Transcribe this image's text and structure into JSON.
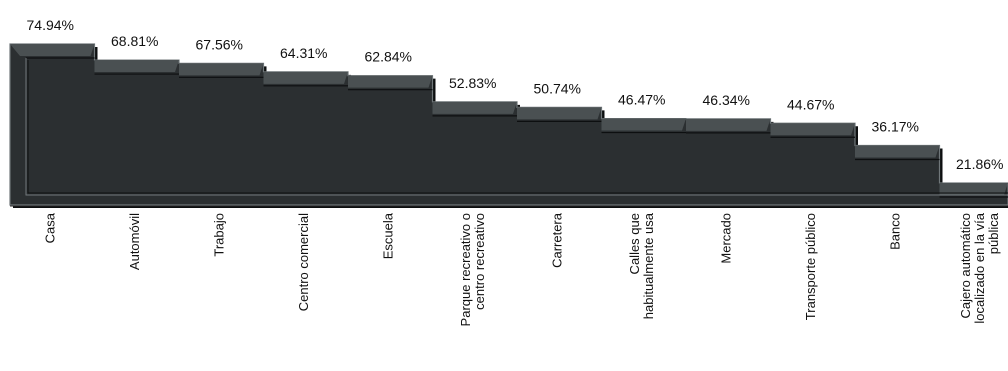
{
  "chart_data": {
    "type": "area",
    "title": "",
    "xlabel": "",
    "ylabel": "",
    "ylim": [
      0,
      80
    ],
    "grid": false,
    "legend": "none",
    "colors": {
      "fill": "#2b2f31",
      "edge": "#4a5052",
      "bevel": "#70777a",
      "shadow": "#0d0f10"
    },
    "categories": [
      [
        "Casa"
      ],
      [
        "Automóvil"
      ],
      [
        "Trabajo"
      ],
      [
        "Centro comercial"
      ],
      [
        "Escuela"
      ],
      [
        "Parque recreativo o",
        "centro recreativo"
      ],
      [
        "Carretera"
      ],
      [
        "Calles que",
        "habitualmente usa"
      ],
      [
        "Mercado"
      ],
      [
        "Transporte público"
      ],
      [
        "Banco"
      ],
      [
        "Cajero automático",
        "localizado en la vía",
        "pública"
      ]
    ],
    "values": [
      74.94,
      68.81,
      67.56,
      64.31,
      62.84,
      52.83,
      50.74,
      46.47,
      46.34,
      44.67,
      36.17,
      21.86
    ],
    "value_labels": [
      "74.94%",
      "68.81%",
      "67.56%",
      "64.31%",
      "62.84%",
      "52.83%",
      "50.74%",
      "46.47%",
      "46.34%",
      "44.67%",
      "36.17%",
      "21.86%"
    ]
  }
}
